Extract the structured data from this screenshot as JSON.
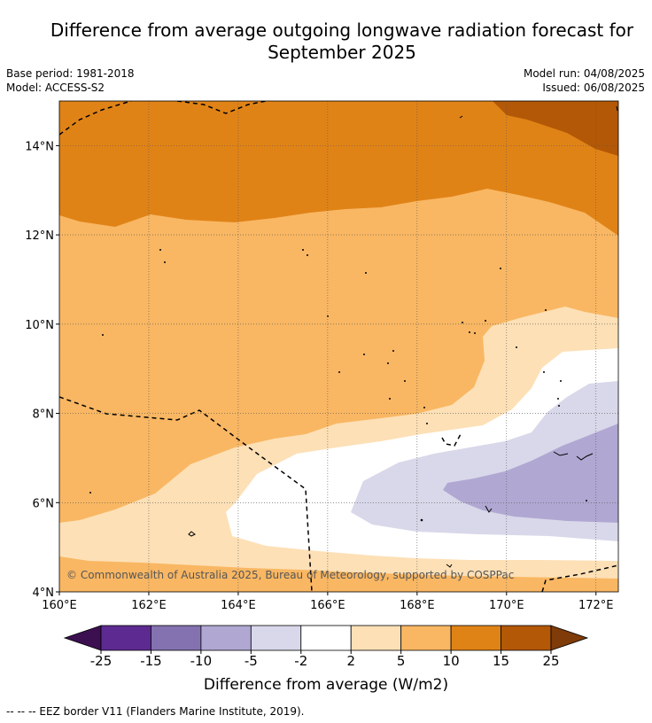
{
  "title": {
    "line1": "Difference from average outgoing longwave radiation forecast for",
    "line2": "September 2025"
  },
  "meta": {
    "base_period": "Base period: 1981-2018",
    "model": "Model: ACCESS-S2",
    "model_run": "Model run: 04/08/2025",
    "issued": "Issued: 06/08/2025"
  },
  "map": {
    "copyright": "© Commonwealth of Australia 2025, Bureau of Meteorology, supported by COSPPac",
    "lat_labels": [
      "14°N",
      "12°N",
      "10°N",
      "8°N",
      "6°N",
      "4°N"
    ],
    "lon_labels": [
      "160°E",
      "162°E",
      "164°E",
      "166°E",
      "168°E",
      "170°E",
      "172°E"
    ],
    "lat_range": [
      4,
      15
    ],
    "lon_range": [
      160,
      172.5
    ],
    "colors": {
      "c_25n": "#3b0f50",
      "c_15_25n": "#5d2a91",
      "c_10_15n": "#8472b0",
      "c_5_10n": "#b0a8d2",
      "c_2_5n": "#d8d8ea",
      "c_2_2": "#ffffff",
      "c_2_5": "#fde0b6",
      "c_5_10": "#f9b763",
      "c_10_15": "#e08317",
      "c_15_25": "#b35806",
      "c_25": "#7f3b08"
    }
  },
  "colorbar": {
    "ticks": [
      "-25",
      "-15",
      "-10",
      "-5",
      "-2",
      "2",
      "5",
      "10",
      "15",
      "25"
    ],
    "label": "Difference from average (W/m2)"
  },
  "footer": "--  --  -- EEZ border V11 (Flanders Marine Institute, 2019)."
}
